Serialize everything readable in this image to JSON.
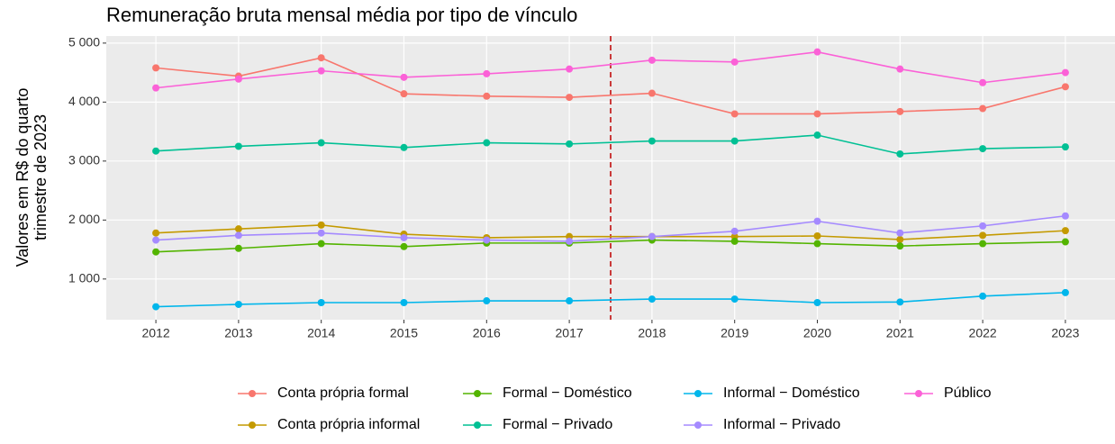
{
  "chart_data": {
    "type": "line",
    "title": "Remuneração bruta mensal média por tipo de vínculo",
    "y_label": [
      "Valores em R$ do quarto",
      "trimestre de 2023"
    ],
    "x": [
      2012,
      2013,
      2014,
      2015,
      2016,
      2017,
      2018,
      2019,
      2020,
      2021,
      2022,
      2023
    ],
    "xlim": [
      2011.4,
      2023.6
    ],
    "xticks": [
      2012,
      2013,
      2014,
      2015,
      2016,
      2017,
      2018,
      2019,
      2020,
      2021,
      2022,
      2023
    ],
    "ylim": [
      310,
      5120
    ],
    "yticks": [
      {
        "value": 1000,
        "label": "1 000"
      },
      {
        "value": 2000,
        "label": "2 000"
      },
      {
        "value": 3000,
        "label": "3 000"
      },
      {
        "value": 4000,
        "label": "4 000"
      },
      {
        "value": 5000,
        "label": "5 000"
      }
    ],
    "grid": true,
    "vline": 2017.5,
    "vline_color": "#c00000",
    "legend": "bottom",
    "series": [
      {
        "name": "Conta própria formal",
        "color": "#F8766D",
        "values": [
          4580,
          4440,
          4750,
          4140,
          4100,
          4080,
          4150,
          3800,
          3800,
          3840,
          3890,
          4260
        ]
      },
      {
        "name": "Conta própria informal",
        "color": "#C49A00",
        "values": [
          1780,
          1850,
          1915,
          1760,
          1700,
          1720,
          1720,
          1720,
          1730,
          1670,
          1740,
          1820
        ]
      },
      {
        "name": "Formal − Doméstico",
        "color": "#53B400",
        "values": [
          1460,
          1520,
          1600,
          1550,
          1610,
          1610,
          1660,
          1640,
          1600,
          1560,
          1600,
          1630
        ]
      },
      {
        "name": "Formal − Privado",
        "color": "#00C094",
        "values": [
          3170,
          3250,
          3310,
          3230,
          3310,
          3290,
          3340,
          3340,
          3440,
          3120,
          3210,
          3240
        ]
      },
      {
        "name": "Informal − Doméstico",
        "color": "#00B6EB",
        "values": [
          530,
          570,
          600,
          600,
          630,
          630,
          660,
          660,
          600,
          610,
          710,
          770
        ]
      },
      {
        "name": "Informal − Privado",
        "color": "#A58AFF",
        "values": [
          1660,
          1740,
          1780,
          1700,
          1660,
          1640,
          1720,
          1810,
          1980,
          1780,
          1900,
          2070
        ]
      },
      {
        "name": "Público",
        "color": "#FB61D7",
        "values": [
          4240,
          4390,
          4530,
          4420,
          4480,
          4560,
          4710,
          4680,
          4850,
          4560,
          4330,
          4500
        ]
      }
    ]
  }
}
